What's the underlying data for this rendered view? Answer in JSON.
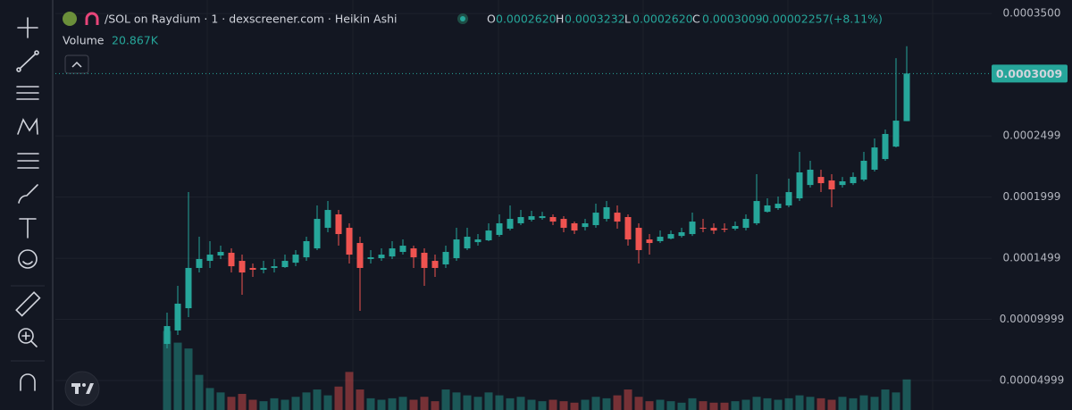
{
  "chart_data": {
    "type": "candlestick",
    "title": "/SOL on Raydium · 1 · dexscreener.com · Heikin Ashi",
    "legend": {
      "o_label": "O",
      "o": "0.0002620",
      "h_label": "H",
      "h": "0.0003232",
      "l_label": "L",
      "l": "0.0002620",
      "c_label": "C",
      "c": "0.0003009",
      "change": "0.00002257",
      "change_pct": "(+8.11%)"
    },
    "volume_title": "Volume",
    "volume_last_label": "20.867K",
    "last_price_label": "0.0003009",
    "up_color": "#26a69a",
    "down_color": "#ef5350",
    "ylim": [
      2.59e-05,
      0.000361
    ],
    "yticks": [
      {
        "value": 0.00035,
        "label": "0.0003500"
      },
      0.0002499,
      0.0001999,
      0.0001499,
      9.999e-05,
      4.999e-05
    ],
    "vlim": [
      0,
      280000
    ],
    "open": [
      7.99e-05,
      9.09e-05,
      0.0001091,
      0.000142,
      0.0001478,
      0.0001522,
      0.0001544,
      0.0001478,
      0.000142,
      0.0001405,
      0.000142,
      0.0001427,
      0.0001463,
      0.0001507,
      0.000158,
      0.0001748,
      0.0001858,
      0.0001748,
      0.0001624,
      0.0001493,
      0.00015,
      0.0001514,
      0.0001551,
      0.000158,
      0.0001544,
      0.0001478,
      0.0001449,
      0.00015,
      0.000158,
      0.0001631,
      0.0001646,
      0.000169,
      0.0001741,
      0.0001785,
      0.0001814,
      0.0001828,
      0.0001836,
      0.0001821,
      0.0001785,
      0.0001755,
      0.000177,
      0.0001821,
      0.0001872,
      0.0001836,
      0.0001748,
      0.0001653,
      0.0001639,
      0.000166,
      0.0001682,
      0.0001697,
      0.0001748,
      0.0001748,
      0.0001741,
      0.0001741,
      0.0001748,
      0.0001785,
      0.0001879,
      0.0001909,
      0.0001931,
      0.0001989,
      0.0002098,
      0.0002164,
      0.0002135,
      0.0002098,
      0.0002113,
      0.0002142,
      0.0002223,
      0.000231,
      0.0002412,
      0.000262
    ],
    "high": [
      0.0001055,
      0.0001274,
      0.000204,
      0.0001675,
      0.0001639,
      0.0001602,
      0.000158,
      0.0001529,
      0.0001456,
      0.0001478,
      0.0001493,
      0.0001529,
      0.0001566,
      0.0001675,
      0.0001931,
      0.0001967,
      0.0001894,
      0.0001785,
      0.0001675,
      0.0001566,
      0.000158,
      0.0001639,
      0.0001653,
      0.0001602,
      0.000158,
      0.0001529,
      0.0001602,
      0.0001748,
      0.0001748,
      0.0001697,
      0.0001785,
      0.0001858,
      0.0001931,
      0.0001894,
      0.0001887,
      0.0001879,
      0.0001858,
      0.0001843,
      0.0001799,
      0.0001821,
      0.0001945,
      0.0001967,
      0.0001931,
      0.0001858,
      0.0001785,
      0.0001697,
      0.0001726,
      0.0001726,
      0.0001748,
      0.0001872,
      0.0001821,
      0.0001785,
      0.0001785,
      0.0001799,
      0.0001858,
      0.0002186,
      0.0001989,
      0.0002004,
      0.000215,
      0.0002369,
      0.0002296,
      0.0002223,
      0.0002186,
      0.0002164,
      0.0002201,
      0.0002369,
      0.0002478,
      0.0002551,
      0.0003135,
      0.0003232
    ],
    "low": [
      7.63e-05,
      8.72e-05,
      0.0001018,
      0.0001383,
      0.000142,
      0.0001493,
      0.0001383,
      0.0001201,
      0.0001347,
      0.0001376,
      0.0001383,
      0.000142,
      0.0001434,
      0.0001478,
      0.0001566,
      0.0001712,
      0.0001602,
      0.0001456,
      0.0001069,
      0.0001456,
      0.0001478,
      0.0001493,
      0.0001529,
      0.000142,
      0.0001274,
      0.0001347,
      0.000142,
      0.0001478,
      0.0001566,
      0.0001602,
      0.0001639,
      0.0001675,
      0.0001726,
      0.000177,
      0.0001799,
      0.0001814,
      0.000177,
      0.0001712,
      0.0001697,
      0.0001726,
      0.0001748,
      0.0001799,
      0.0001741,
      0.0001602,
      0.0001456,
      0.0001529,
      0.0001624,
      0.0001653,
      0.0001668,
      0.0001682,
      0.0001712,
      0.0001697,
      0.0001712,
      0.0001726,
      0.0001726,
      0.000177,
      0.0001872,
      0.0001894,
      0.0001916,
      0.0001967,
      0.0002077,
      0.000204,
      0.0001916,
      0.0002077,
      0.0002098,
      0.0002128,
      0.0002208,
      0.0002296,
      0.0002405,
      0.000262
    ],
    "close": [
      9.45e-05,
      0.0001128,
      0.000142,
      0.0001493,
      0.0001529,
      0.0001551,
      0.0001434,
      0.0001383,
      0.0001405,
      0.000142,
      0.0001434,
      0.0001478,
      0.0001529,
      0.0001639,
      0.0001821,
      0.0001894,
      0.0001697,
      0.0001529,
      0.000142,
      0.0001507,
      0.0001529,
      0.000158,
      0.0001602,
      0.0001507,
      0.000142,
      0.000142,
      0.0001551,
      0.0001653,
      0.0001675,
      0.0001653,
      0.0001726,
      0.0001785,
      0.0001821,
      0.0001836,
      0.0001843,
      0.0001843,
      0.0001799,
      0.0001748,
      0.0001726,
      0.0001785,
      0.0001872,
      0.0001916,
      0.0001799,
      0.0001653,
      0.0001566,
      0.0001624,
      0.0001675,
      0.0001697,
      0.0001712,
      0.0001799,
      0.0001741,
      0.0001726,
      0.0001733,
      0.0001763,
      0.0001821,
      0.0001967,
      0.0001931,
      0.0001945,
      0.000204,
      0.0002201,
      0.0002223,
      0.0002113,
      0.0002062,
      0.0002128,
      0.0002164,
      0.0002296,
      0.0002405,
      0.0002515,
      0.0002624,
      0.0003009
    ],
    "volume": [
      54000,
      46000,
      42000,
      24000,
      15000,
      12000,
      9000,
      11000,
      7000,
      6000,
      8000,
      7000,
      9000,
      12000,
      14000,
      10000,
      16000,
      26000,
      14000,
      8000,
      7000,
      8000,
      9000,
      7000,
      9000,
      6000,
      14000,
      12000,
      10000,
      9000,
      12000,
      10000,
      8000,
      9000,
      7000,
      6000,
      7000,
      6000,
      5000,
      7000,
      9000,
      8000,
      10000,
      14000,
      9000,
      6000,
      7000,
      6000,
      5000,
      8000,
      6000,
      5000,
      5000,
      6000,
      7000,
      9000,
      8000,
      7000,
      8000,
      10000,
      9000,
      8000,
      7000,
      9000,
      8000,
      10000,
      9000,
      14000,
      12000,
      20867
    ]
  }
}
